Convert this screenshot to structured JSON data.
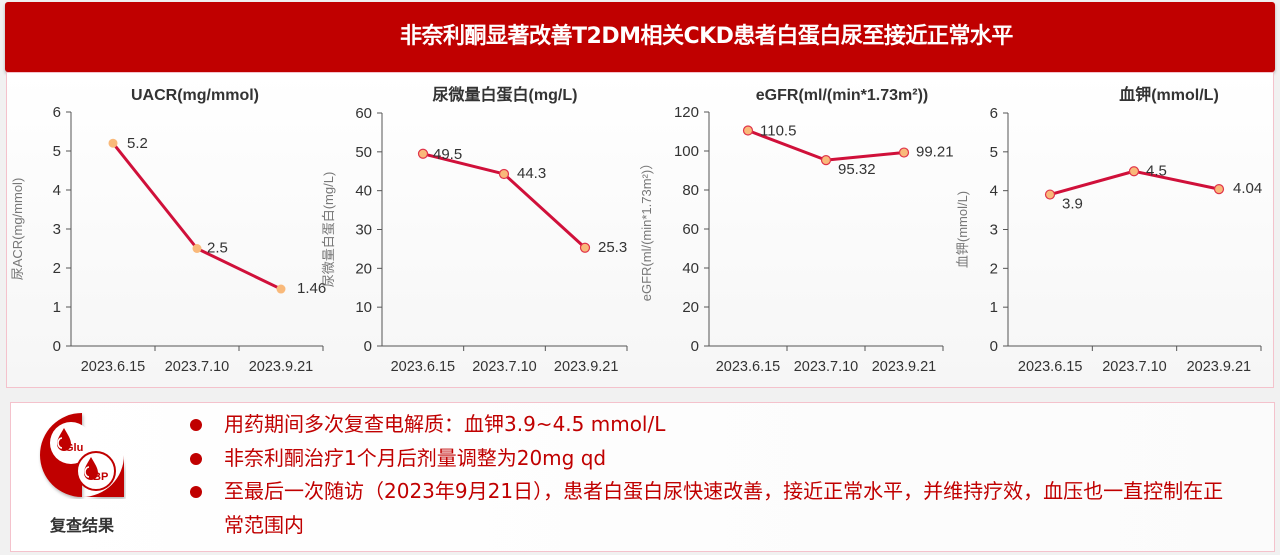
{
  "header": {
    "title": "非奈利酮显著改善T2DM相关CKD患者白蛋白尿至接近正常水平"
  },
  "theme": {
    "accent": "#C00000",
    "line_color": "#D0103A",
    "marker_fill": "#F9B97A",
    "panel_border": "#F4C2CC"
  },
  "chart_data": [
    {
      "type": "line",
      "title": "UACR(mg/mmol)",
      "ylabel": "尿ACR(mg/mmol)",
      "xlabel": "",
      "categories": [
        "2023.6.15",
        "2023.7.10",
        "2023.9.21"
      ],
      "values": [
        5.2,
        2.5,
        1.46
      ],
      "data_labels": [
        "5.2",
        "2.5",
        "1.46"
      ],
      "ylim": [
        0,
        6
      ],
      "yticks": [
        0,
        1,
        2,
        3,
        4,
        5,
        6
      ],
      "grid": false,
      "legend": "none"
    },
    {
      "type": "line",
      "title": "尿微量白蛋白(mg/L)",
      "ylabel": "尿微量白蛋白(mg/L)",
      "xlabel": "",
      "categories": [
        "2023.6.15",
        "2023.7.10",
        "2023.9.21"
      ],
      "values": [
        49.5,
        44.3,
        25.3
      ],
      "data_labels": [
        "49.5",
        "44.3",
        "25.3"
      ],
      "ylim": [
        0,
        60
      ],
      "yticks": [
        0,
        10,
        20,
        30,
        40,
        50,
        60
      ],
      "grid": false,
      "legend": "none"
    },
    {
      "type": "line",
      "title": "eGFR(ml/(min*1.73m²))",
      "ylabel": "eGFR(ml/(min*1.73m²)）",
      "xlabel": "",
      "categories": [
        "2023.6.15",
        "2023.7.10",
        "2023.9.21"
      ],
      "values": [
        110.5,
        95.32,
        99.21
      ],
      "data_labels": [
        "110.5",
        "95.32",
        "99.21"
      ],
      "ylim": [
        0,
        120
      ],
      "yticks": [
        0,
        20,
        40,
        60,
        80,
        100,
        120
      ],
      "grid": false,
      "legend": "none"
    },
    {
      "type": "line",
      "title": "血钾(mmol/L)",
      "ylabel": "血钾(mmol/L)",
      "xlabel": "",
      "categories": [
        "2023.6.15",
        "2023.7.10",
        "2023.9.21"
      ],
      "values": [
        3.9,
        4.5,
        4.04
      ],
      "data_labels": [
        "3.9",
        "4.5",
        "4.04"
      ],
      "ylim": [
        0,
        6
      ],
      "yticks": [
        0,
        1,
        2,
        3,
        4,
        5,
        6
      ],
      "grid": false,
      "legend": "none"
    }
  ],
  "results": {
    "label": "复查结果",
    "icon": {
      "name": "blood-drop-glu-bp-icon",
      "glu_text": "Glu",
      "bp_text": "BP"
    },
    "bullets": [
      "用药期间多次复查电解质：血钾3.9~4.5 mmol/L",
      "非奈利酮治疗1个月后剂量调整为20mg qd",
      "至最后一次随访（2023年9月21日），患者白蛋白尿快速改善，接近正常水平，并维持疗效，血压也一直控制在正常范围内"
    ]
  }
}
